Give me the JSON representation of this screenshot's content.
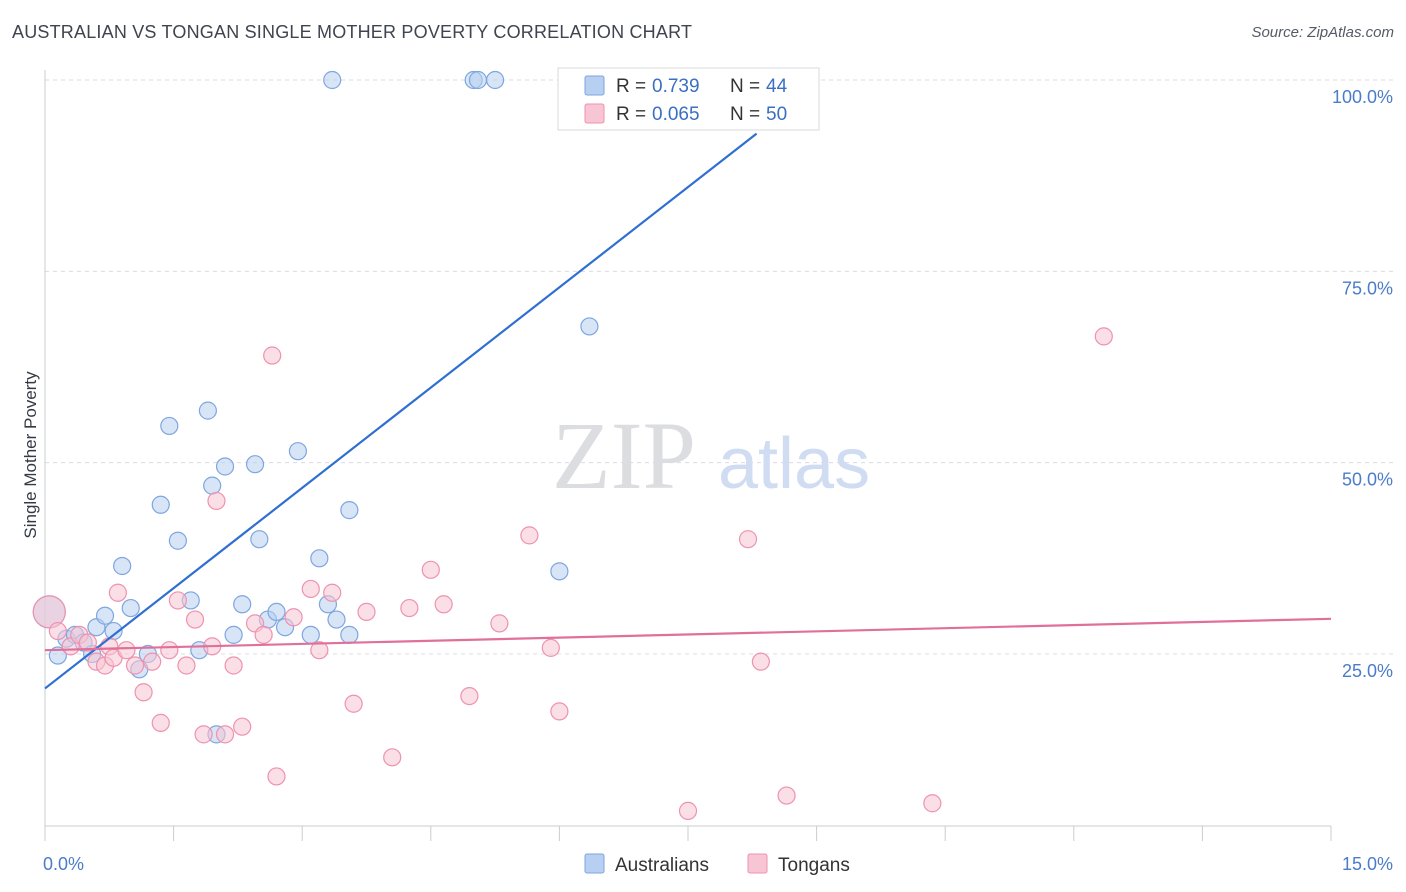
{
  "header": {
    "title": "AUSTRALIAN VS TONGAN SINGLE MOTHER POVERTY CORRELATION CHART",
    "source": "Source: ZipAtlas.com"
  },
  "watermark": {
    "zip": "ZIP",
    "atlas": "atlas"
  },
  "legend_box": {
    "rows": [
      {
        "r_label": "R =",
        "r_value": "0.739",
        "n_label": "N =",
        "n_value": "44"
      },
      {
        "r_label": "R =",
        "r_value": "0.065",
        "n_label": "N =",
        "n_value": "50"
      }
    ]
  },
  "colors": {
    "australians_fill": "#b7cff1",
    "australians_stroke": "#7ea6e0",
    "australians_line": "#2f6fd1",
    "tongans_fill": "#f8c5d4",
    "tongans_stroke": "#ee92b0",
    "tongans_line": "#e0709a",
    "value_text": "#3a6fc4",
    "label_text": "#333333"
  },
  "chart_data": {
    "type": "scatter",
    "title": "AUSTRALIAN VS TONGAN SINGLE MOTHER POVERTY CORRELATION CHART",
    "xlabel": "",
    "ylabel": "Single Mother Poverty",
    "xlim": [
      0,
      15
    ],
    "ylim": [
      0,
      102
    ],
    "x_tick_labels": [
      {
        "value": 0,
        "label": "0.0%"
      },
      {
        "value": 15,
        "label": "15.0%"
      }
    ],
    "y_tick_labels": [
      {
        "value": 25,
        "label": "25.0%"
      },
      {
        "value": 50,
        "label": "50.0%"
      },
      {
        "value": 75,
        "label": "75.0%"
      },
      {
        "value": 100,
        "label": "100.0%"
      }
    ],
    "x_minor_ticks": [
      0,
      1.5,
      3,
      4.5,
      6,
      7.5,
      9,
      10.5,
      12,
      13.5,
      15
    ],
    "grid": true,
    "legend_position": "bottom",
    "series": [
      {
        "name": "Australians",
        "color": "#b7cff1",
        "r": 0.739,
        "n": 44,
        "trend": {
          "x": [
            0,
            8.3
          ],
          "y": [
            20.5,
            93.0
          ]
        },
        "points": [
          [
            0.05,
            30.5
          ],
          [
            0.15,
            24.8
          ],
          [
            0.25,
            27.0
          ],
          [
            0.35,
            27.5
          ],
          [
            0.45,
            26.5
          ],
          [
            0.55,
            25.0
          ],
          [
            0.6,
            28.5
          ],
          [
            0.7,
            30.0
          ],
          [
            0.8,
            28.0
          ],
          [
            0.9,
            36.5
          ],
          [
            1.0,
            31.0
          ],
          [
            1.1,
            23.0
          ],
          [
            1.2,
            25.0
          ],
          [
            1.35,
            44.5
          ],
          [
            1.45,
            54.8
          ],
          [
            1.55,
            39.8
          ],
          [
            1.7,
            32.0
          ],
          [
            1.8,
            25.5
          ],
          [
            1.9,
            56.8
          ],
          [
            1.95,
            47.0
          ],
          [
            2.0,
            14.5
          ],
          [
            2.1,
            49.5
          ],
          [
            2.2,
            27.5
          ],
          [
            2.3,
            31.5
          ],
          [
            2.45,
            49.8
          ],
          [
            2.5,
            40.0
          ],
          [
            2.6,
            29.5
          ],
          [
            2.7,
            30.5
          ],
          [
            2.8,
            28.5
          ],
          [
            2.95,
            51.5
          ],
          [
            3.1,
            27.5
          ],
          [
            3.2,
            37.5
          ],
          [
            3.3,
            31.5
          ],
          [
            3.35,
            100.0
          ],
          [
            3.4,
            29.5
          ],
          [
            3.55,
            27.5
          ],
          [
            3.55,
            43.8
          ],
          [
            5.0,
            100.0
          ],
          [
            5.05,
            100.0
          ],
          [
            5.25,
            100.0
          ],
          [
            6.0,
            35.8
          ],
          [
            6.1,
            100.0
          ],
          [
            6.35,
            67.8
          ],
          [
            6.5,
            100.0
          ]
        ]
      },
      {
        "name": "Tongans",
        "color": "#f8c5d4",
        "r": 0.065,
        "n": 50,
        "trend": {
          "x": [
            0,
            15
          ],
          "y": [
            25.5,
            29.6
          ]
        },
        "points": [
          [
            0.05,
            30.5
          ],
          [
            0.15,
            28.0
          ],
          [
            0.3,
            26.0
          ],
          [
            0.4,
            27.5
          ],
          [
            0.5,
            26.5
          ],
          [
            0.6,
            24.0
          ],
          [
            0.7,
            23.5
          ],
          [
            0.75,
            26.0
          ],
          [
            0.8,
            24.5
          ],
          [
            0.85,
            33.0
          ],
          [
            0.95,
            25.5
          ],
          [
            1.05,
            23.5
          ],
          [
            1.15,
            20.0
          ],
          [
            1.25,
            24.0
          ],
          [
            1.35,
            16.0
          ],
          [
            1.45,
            25.5
          ],
          [
            1.55,
            32.0
          ],
          [
            1.65,
            23.5
          ],
          [
            1.75,
            29.5
          ],
          [
            1.85,
            14.5
          ],
          [
            1.95,
            26.0
          ],
          [
            2.0,
            45.0
          ],
          [
            2.1,
            14.5
          ],
          [
            2.2,
            23.5
          ],
          [
            2.3,
            15.5
          ],
          [
            2.45,
            29.0
          ],
          [
            2.55,
            27.5
          ],
          [
            2.65,
            64.0
          ],
          [
            2.7,
            9.0
          ],
          [
            2.9,
            29.8
          ],
          [
            3.1,
            33.5
          ],
          [
            3.2,
            25.5
          ],
          [
            3.35,
            33.0
          ],
          [
            3.6,
            18.5
          ],
          [
            3.75,
            30.5
          ],
          [
            4.05,
            11.5
          ],
          [
            4.25,
            31.0
          ],
          [
            4.5,
            36.0
          ],
          [
            4.65,
            31.5
          ],
          [
            4.95,
            19.5
          ],
          [
            5.3,
            29.0
          ],
          [
            5.65,
            40.5
          ],
          [
            5.9,
            25.8
          ],
          [
            6.0,
            17.5
          ],
          [
            7.5,
            4.5
          ],
          [
            8.2,
            40.0
          ],
          [
            8.35,
            24.0
          ],
          [
            8.65,
            6.5
          ],
          [
            10.35,
            5.5
          ],
          [
            12.35,
            66.5
          ]
        ]
      }
    ]
  }
}
